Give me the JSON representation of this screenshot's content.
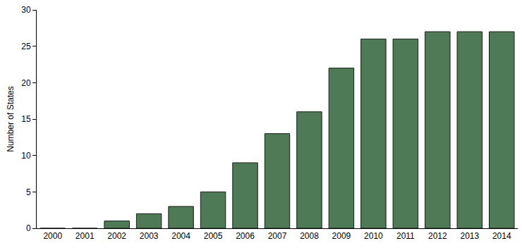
{
  "chart_data": {
    "type": "bar",
    "ylabel": "Number of States",
    "categories": [
      "2000",
      "2001",
      "2002",
      "2003",
      "2004",
      "2005",
      "2006",
      "2007",
      "2008",
      "2009",
      "2010",
      "2011",
      "2012",
      "2013",
      "2014"
    ],
    "values": [
      0,
      0,
      1,
      2,
      3,
      5,
      9,
      13,
      16,
      22,
      26,
      26,
      27,
      27,
      27
    ],
    "color": "#4e7a55",
    "ylim": [
      0,
      30
    ],
    "yticks": [
      0,
      5,
      10,
      15,
      20,
      25,
      30
    ],
    "grid": false
  }
}
